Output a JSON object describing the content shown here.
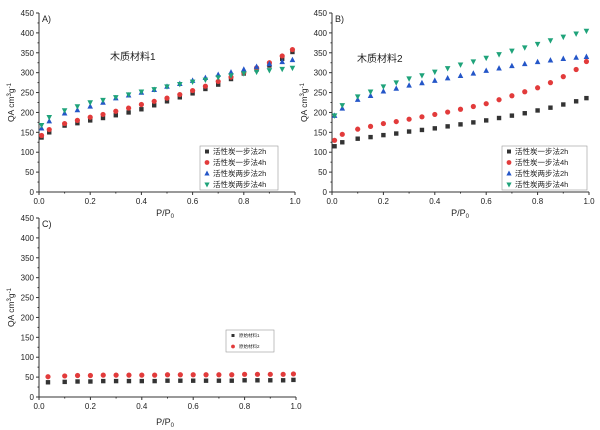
{
  "colors": {
    "black_square": "#333333",
    "red_circle": "#e23b3b",
    "blue_triangle": "#2456c8",
    "green_triangle_down": "#1fa37a"
  },
  "chart_data": [
    {
      "type": "scatter",
      "panel_label": "A)",
      "annotation": "木质材料1",
      "xlabel": "P/P0",
      "ylabel": "QA cm3g-1",
      "xlim": [
        0,
        1.0
      ],
      "ylim": [
        0,
        450
      ],
      "xticks": [
        "0.0",
        "0.2",
        "0.4",
        "0.6",
        "0.8",
        "1.0"
      ],
      "yticks": [
        "0",
        "50",
        "100",
        "150",
        "200",
        "250",
        "300",
        "350",
        "400",
        "450"
      ],
      "legend_position": "bottom-right",
      "x": [
        0.01,
        0.04,
        0.1,
        0.15,
        0.2,
        0.25,
        0.3,
        0.35,
        0.4,
        0.45,
        0.5,
        0.55,
        0.6,
        0.65,
        0.7,
        0.75,
        0.8,
        0.85,
        0.9,
        0.95,
        0.99
      ],
      "series": [
        {
          "name": "活性炭一步法2h",
          "marker": "square",
          "values": [
            137,
            150,
            167,
            173,
            180,
            186,
            193,
            200,
            208,
            218,
            228,
            238,
            248,
            259,
            270,
            284,
            298,
            308,
            318,
            335,
            352
          ]
        },
        {
          "name": "活性炭一步法4h",
          "marker": "circle",
          "values": [
            142,
            157,
            172,
            180,
            188,
            195,
            203,
            211,
            220,
            228,
            236,
            245,
            255,
            266,
            278,
            289,
            300,
            312,
            325,
            342,
            358
          ]
        },
        {
          "name": "活性炭两步法2h",
          "marker": "triangle-up",
          "values": [
            160,
            178,
            198,
            206,
            215,
            225,
            236,
            243,
            250,
            257,
            265,
            272,
            280,
            287,
            295,
            301,
            308,
            315,
            322,
            327,
            332
          ]
        },
        {
          "name": "活性炭两步法4h",
          "marker": "triangle-down",
          "values": [
            168,
            188,
            205,
            215,
            225,
            231,
            238,
            245,
            252,
            258,
            265,
            271,
            277,
            282,
            288,
            293,
            298,
            302,
            306,
            309,
            312
          ]
        }
      ]
    },
    {
      "type": "scatter",
      "panel_label": "B)",
      "annotation": "木质材料2",
      "xlabel": "P/P0",
      "ylabel": "QA cm3g-1",
      "xlim": [
        0,
        1.0
      ],
      "ylim": [
        0,
        450
      ],
      "xticks": [
        "0.0",
        "0.2",
        "0.4",
        "0.6",
        "0.8",
        "1.0"
      ],
      "yticks": [
        "0",
        "50",
        "100",
        "150",
        "200",
        "250",
        "300",
        "350",
        "400",
        "450"
      ],
      "legend_position": "bottom-right",
      "x": [
        0.01,
        0.04,
        0.1,
        0.15,
        0.2,
        0.25,
        0.3,
        0.35,
        0.4,
        0.45,
        0.5,
        0.55,
        0.6,
        0.65,
        0.7,
        0.75,
        0.8,
        0.85,
        0.9,
        0.95,
        0.99
      ],
      "series": [
        {
          "name": "活性炭一步法2h",
          "marker": "square",
          "values": [
            115,
            125,
            134,
            138,
            143,
            147,
            152,
            156,
            160,
            165,
            170,
            175,
            180,
            186,
            192,
            198,
            205,
            212,
            220,
            228,
            236
          ]
        },
        {
          "name": "活性炭一步法4h",
          "marker": "circle",
          "values": [
            130,
            145,
            158,
            165,
            172,
            177,
            183,
            189,
            195,
            201,
            208,
            215,
            222,
            232,
            242,
            252,
            262,
            275,
            290,
            308,
            328
          ]
        },
        {
          "name": "活性炭两步法2h",
          "marker": "triangle-up",
          "values": [
            192,
            210,
            232,
            242,
            253,
            260,
            268,
            274,
            280,
            286,
            292,
            298,
            305,
            311,
            317,
            322,
            327,
            331,
            335,
            338,
            340
          ]
        },
        {
          "name": "活性炭两步法4h",
          "marker": "triangle-down",
          "values": [
            192,
            218,
            240,
            252,
            265,
            275,
            285,
            293,
            302,
            311,
            320,
            328,
            337,
            346,
            355,
            363,
            372,
            381,
            390,
            398,
            405
          ]
        }
      ]
    },
    {
      "type": "scatter",
      "panel_label": "C)",
      "annotation": "",
      "xlabel": "P/P0",
      "ylabel": "QA cm3g-1",
      "xlim": [
        0,
        1.0
      ],
      "ylim": [
        0,
        450
      ],
      "xticks": [
        "0.0",
        "0.2",
        "0.4",
        "0.6",
        "0.8",
        "1.0"
      ],
      "yticks": [
        "0",
        "50",
        "100",
        "150",
        "200",
        "250",
        "300",
        "350",
        "400",
        "450"
      ],
      "legend_position": "center-right",
      "x": [
        0.035,
        0.1,
        0.15,
        0.2,
        0.25,
        0.3,
        0.35,
        0.4,
        0.45,
        0.5,
        0.55,
        0.6,
        0.65,
        0.7,
        0.75,
        0.8,
        0.85,
        0.9,
        0.95,
        0.99
      ],
      "series": [
        {
          "name": "原始材料1",
          "marker": "square",
          "values": [
            37,
            38,
            39,
            39,
            40,
            40,
            40,
            40,
            40,
            41,
            41,
            41,
            41,
            41,
            41,
            42,
            42,
            42,
            42,
            43
          ]
        },
        {
          "name": "原始材料2",
          "marker": "circle",
          "values": [
            51,
            53,
            54,
            54,
            55,
            55,
            55,
            55,
            55,
            56,
            56,
            56,
            56,
            56,
            56,
            57,
            57,
            57,
            57,
            58
          ]
        }
      ]
    }
  ]
}
